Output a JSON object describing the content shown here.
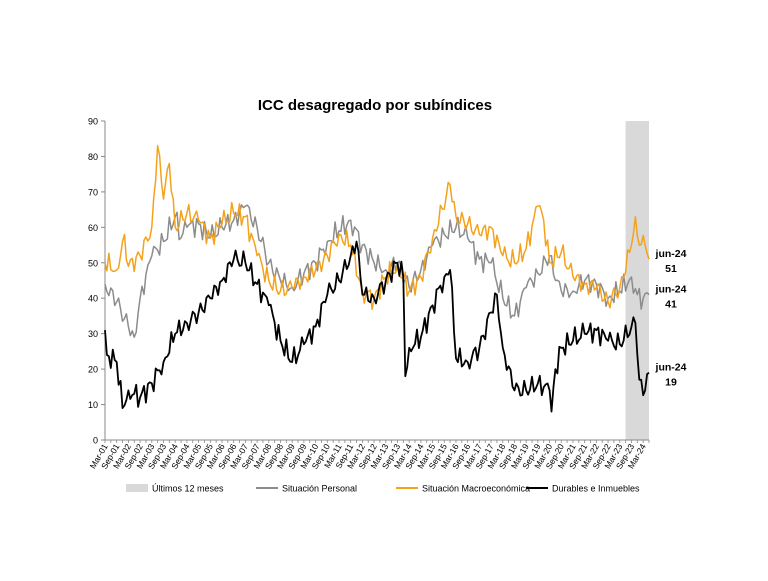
{
  "chart_data": {
    "type": "line",
    "title": "ICC desagregado por subíndices",
    "xlabel": "",
    "ylabel": "",
    "ylim": [
      0,
      90
    ],
    "yticks": [
      0,
      10,
      20,
      30,
      40,
      50,
      60,
      70,
      80,
      90
    ],
    "grid": false,
    "legend_position": "bottom",
    "x_start": "Mar-01",
    "x_end": "Jun-24",
    "x_tick_labels": [
      "Mar-01",
      "Sep-01",
      "Mar-02",
      "Sep-02",
      "Mar-03",
      "Sep-03",
      "Mar-04",
      "Sep-04",
      "Mar-05",
      "Sep-05",
      "Mar-06",
      "Sep-06",
      "Mar-07",
      "Sep-07",
      "Mar-08",
      "Sep-08",
      "Mar-09",
      "Sep-09",
      "Mar-10",
      "Sep-10",
      "Mar-11",
      "Sep-11",
      "Mar-12",
      "Sep-12",
      "Mar-13",
      "Sep-13",
      "Mar-14",
      "Sep-14",
      "Mar-15",
      "Sep-15",
      "Mar-16",
      "Sep-16",
      "Mar-17",
      "Sep-17",
      "Mar-18",
      "Sep-18",
      "Mar-19",
      "Sep-19",
      "Mar-20",
      "Sep-20",
      "Mar-21",
      "Sep-21",
      "Mar-22",
      "Sep-22",
      "Mar-23",
      "Sep-23",
      "Mar-24"
    ],
    "shaded_period": {
      "label": "Últimos 12 meses",
      "from": "Jul-23",
      "to": "Jun-24",
      "color": "#d9d9d9"
    },
    "series": [
      {
        "name": "Situación Personal",
        "color": "#8c8c8c",
        "end_label": {
          "date": "jun-24",
          "value": "41"
        },
        "anchors": [
          [
            "Mar-01",
            44
          ],
          [
            "Sep-01",
            39
          ],
          [
            "Mar-02",
            32
          ],
          [
            "Jun-02",
            29
          ],
          [
            "Sep-02",
            40
          ],
          [
            "Mar-03",
            52
          ],
          [
            "Sep-03",
            56
          ],
          [
            "Mar-04",
            63
          ],
          [
            "Jun-04",
            57
          ],
          [
            "Sep-04",
            60
          ],
          [
            "Mar-05",
            61
          ],
          [
            "Sep-05",
            57
          ],
          [
            "Mar-06",
            60
          ],
          [
            "Sep-06",
            62
          ],
          [
            "Mar-07",
            66
          ],
          [
            "Sep-07",
            60
          ],
          [
            "Mar-08",
            50
          ],
          [
            "Sep-08",
            45
          ],
          [
            "Mar-09",
            43
          ],
          [
            "Sep-09",
            47
          ],
          [
            "Mar-10",
            50
          ],
          [
            "Sep-10",
            56
          ],
          [
            "Mar-11",
            59
          ],
          [
            "Sep-11",
            62
          ],
          [
            "Mar-12",
            55
          ],
          [
            "Sep-12",
            50
          ],
          [
            "Mar-13",
            48
          ],
          [
            "Sep-13",
            50
          ],
          [
            "Mar-14",
            43
          ],
          [
            "Sep-14",
            48
          ],
          [
            "Mar-15",
            55
          ],
          [
            "Sep-15",
            58
          ],
          [
            "Mar-16",
            60
          ],
          [
            "Sep-16",
            57
          ],
          [
            "Mar-17",
            51
          ],
          [
            "Sep-17",
            50
          ],
          [
            "Mar-18",
            40
          ],
          [
            "Sep-18",
            35
          ],
          [
            "Mar-19",
            43
          ],
          [
            "Sep-19",
            47
          ],
          [
            "Mar-20",
            52
          ],
          [
            "Jun-20",
            45
          ],
          [
            "Sep-20",
            42
          ],
          [
            "Mar-21",
            42
          ],
          [
            "Sep-21",
            45
          ],
          [
            "Mar-22",
            44
          ],
          [
            "Sep-22",
            40
          ],
          [
            "Mar-23",
            42
          ],
          [
            "Sep-23",
            46
          ],
          [
            "Dec-23",
            41
          ],
          [
            "Mar-24",
            40
          ],
          [
            "Jun-24",
            41
          ]
        ]
      },
      {
        "name": "Situación Macroeconómica",
        "color": "#f5a21b",
        "end_label": {
          "date": "jun-24",
          "value": "51"
        },
        "anchors": [
          [
            "Mar-01",
            50
          ],
          [
            "Sep-01",
            48
          ],
          [
            "Jan-02",
            58
          ],
          [
            "Mar-02",
            49
          ],
          [
            "Sep-02",
            52
          ],
          [
            "Mar-03",
            60
          ],
          [
            "Jun-03",
            83
          ],
          [
            "Sep-03",
            68
          ],
          [
            "Dec-03",
            78
          ],
          [
            "Mar-04",
            60
          ],
          [
            "Sep-04",
            64
          ],
          [
            "Mar-05",
            62
          ],
          [
            "Sep-05",
            57
          ],
          [
            "Mar-06",
            61
          ],
          [
            "Sep-06",
            64
          ],
          [
            "Mar-07",
            63
          ],
          [
            "Sep-07",
            52
          ],
          [
            "Mar-08",
            45
          ],
          [
            "Sep-08",
            42
          ],
          [
            "Mar-09",
            43
          ],
          [
            "Sep-09",
            46
          ],
          [
            "Mar-10",
            48
          ],
          [
            "Sep-10",
            52
          ],
          [
            "Mar-11",
            58
          ],
          [
            "Sep-11",
            55
          ],
          [
            "Mar-12",
            42
          ],
          [
            "Sep-12",
            40
          ],
          [
            "Mar-13",
            46
          ],
          [
            "Sep-13",
            49
          ],
          [
            "Mar-14",
            42
          ],
          [
            "Sep-14",
            46
          ],
          [
            "Mar-15",
            57
          ],
          [
            "Dec-15",
            72
          ],
          [
            "Mar-16",
            63
          ],
          [
            "Sep-16",
            61
          ],
          [
            "Mar-17",
            58
          ],
          [
            "Sep-17",
            60
          ],
          [
            "Mar-18",
            52
          ],
          [
            "Sep-18",
            50
          ],
          [
            "Mar-19",
            54
          ],
          [
            "Sep-19",
            66
          ],
          [
            "Dec-19",
            62
          ],
          [
            "Mar-20",
            50
          ],
          [
            "Sep-20",
            53
          ],
          [
            "Mar-21",
            46
          ],
          [
            "Sep-21",
            44
          ],
          [
            "Mar-22",
            43
          ],
          [
            "Sep-22",
            39
          ],
          [
            "Mar-23",
            43
          ],
          [
            "Sep-23",
            55
          ],
          [
            "Nov-23",
            63
          ],
          [
            "Jan-24",
            55
          ],
          [
            "Apr-24",
            55
          ],
          [
            "Jun-24",
            51
          ]
        ]
      },
      {
        "name": "Durables e Inmuebles",
        "color": "#000000",
        "end_label": {
          "date": "jun-24",
          "value": "19"
        },
        "anchors": [
          [
            "Mar-01",
            31
          ],
          [
            "Apr-01",
            24
          ],
          [
            "Sep-01",
            22
          ],
          [
            "Dec-01",
            9
          ],
          [
            "Mar-02",
            14
          ],
          [
            "Sep-02",
            12
          ],
          [
            "Mar-03",
            16
          ],
          [
            "Sep-03",
            22
          ],
          [
            "Mar-04",
            30
          ],
          [
            "Sep-04",
            33
          ],
          [
            "Mar-05",
            36
          ],
          [
            "Sep-05",
            40
          ],
          [
            "Mar-06",
            45
          ],
          [
            "Sep-06",
            51
          ],
          [
            "Mar-07",
            50
          ],
          [
            "Sep-07",
            44
          ],
          [
            "Mar-08",
            38
          ],
          [
            "Sep-08",
            28
          ],
          [
            "Mar-09",
            22
          ],
          [
            "Sep-09",
            27
          ],
          [
            "Mar-10",
            32
          ],
          [
            "Sep-10",
            41
          ],
          [
            "Mar-11",
            45
          ],
          [
            "Sep-11",
            52
          ],
          [
            "Dec-11",
            56
          ],
          [
            "Mar-12",
            41
          ],
          [
            "Sep-12",
            40
          ],
          [
            "Mar-13",
            45
          ],
          [
            "Sep-13",
            50
          ],
          [
            "Dec-13",
            46
          ],
          [
            "Jan-14",
            18
          ],
          [
            "Mar-14",
            26
          ],
          [
            "Sep-14",
            29
          ],
          [
            "Mar-15",
            38
          ],
          [
            "Sep-15",
            46
          ],
          [
            "Dec-15",
            48
          ],
          [
            "Mar-16",
            23
          ],
          [
            "Sep-16",
            22
          ],
          [
            "Mar-17",
            26
          ],
          [
            "Sep-17",
            36
          ],
          [
            "Dec-17",
            41
          ],
          [
            "Mar-18",
            26
          ],
          [
            "Sep-18",
            14
          ],
          [
            "Mar-19",
            14
          ],
          [
            "Sep-19",
            16
          ],
          [
            "Mar-20",
            14
          ],
          [
            "Apr-20",
            8
          ],
          [
            "Jun-20",
            20
          ],
          [
            "Sep-20",
            26
          ],
          [
            "Mar-21",
            28
          ],
          [
            "Sep-21",
            30
          ],
          [
            "Mar-22",
            31
          ],
          [
            "Sep-22",
            28
          ],
          [
            "Mar-23",
            27
          ],
          [
            "Sep-23",
            32
          ],
          [
            "Nov-23",
            33
          ],
          [
            "Jan-24",
            17
          ],
          [
            "Apr-24",
            14
          ],
          [
            "Jun-24",
            19
          ]
        ]
      }
    ]
  },
  "legend": [
    {
      "label": "Últimos 12 meses",
      "kind": "area",
      "color": "#d9d9d9"
    },
    {
      "label": "Situación Personal",
      "kind": "line",
      "color": "#8c8c8c"
    },
    {
      "label": "Situación Macroeconómica",
      "kind": "line",
      "color": "#f5a21b"
    },
    {
      "label": "Durables e Inmuebles",
      "kind": "line",
      "color": "#000000"
    }
  ]
}
